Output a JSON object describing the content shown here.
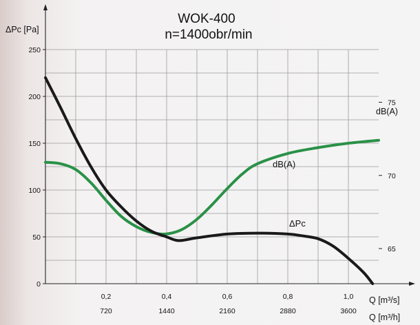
{
  "chart_data": {
    "type": "line",
    "title": "WOK-400",
    "subtitle": "n=1400obr/min",
    "ylabel_left": "ΔPc [Pa]",
    "ylabel_right": "dB(A)",
    "xlabel_top": "Q [m³/s]",
    "xlabel_bottom": "Q [m³/h]",
    "xlim": [
      0,
      1.1
    ],
    "ylim_left": [
      0,
      250
    ],
    "ylim_right": [
      62.6,
      78.6
    ],
    "x_ticks_top": [
      "0,2",
      "0,4",
      "0,6",
      "0,8",
      "1,0"
    ],
    "x_ticks_bottom": [
      "720",
      "1440",
      "2160",
      "2880",
      "3600"
    ],
    "y_ticks_left": [
      "0",
      "50",
      "100",
      "150",
      "200",
      "250"
    ],
    "y_ticks_right": [
      "65",
      "70",
      "75"
    ],
    "grid": true,
    "series": [
      {
        "name": "ΔPc",
        "axis": "left",
        "color": "#1a1a1a",
        "x": [
          0.0,
          0.05,
          0.1,
          0.15,
          0.2,
          0.25,
          0.3,
          0.35,
          0.4,
          0.44,
          0.5,
          0.6,
          0.7,
          0.8,
          0.85,
          0.9,
          0.95,
          1.0,
          1.05,
          1.08
        ],
        "y": [
          220,
          188,
          155,
          125,
          100,
          82,
          67,
          56,
          50,
          46,
          49,
          53,
          54,
          53,
          51,
          48,
          40,
          27,
          12,
          0
        ]
      },
      {
        "name": "dB(A)",
        "axis": "right",
        "color": "#2a9148",
        "x": [
          0.0,
          0.05,
          0.1,
          0.15,
          0.2,
          0.25,
          0.3,
          0.35,
          0.4,
          0.45,
          0.5,
          0.55,
          0.6,
          0.65,
          0.7,
          0.8,
          0.9,
          1.0,
          1.1
        ],
        "y": [
          70.9,
          70.8,
          70.4,
          69.5,
          68.3,
          67.2,
          66.5,
          66.1,
          66.0,
          66.3,
          67.0,
          68.0,
          69.1,
          70.1,
          70.8,
          71.5,
          71.9,
          72.2,
          72.4
        ]
      }
    ],
    "series_labels": [
      "dB(A)",
      "ΔPc"
    ]
  },
  "colors": {
    "pressure_line": "#1a1a1a",
    "noise_line": "#2a9148",
    "grid": "#9a9a9a"
  }
}
